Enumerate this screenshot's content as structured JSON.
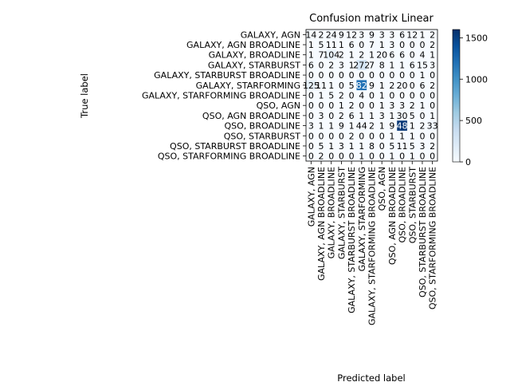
{
  "chart_data": {
    "type": "heatmap",
    "title": "Confusion matrix Linear",
    "xlabel": "Predicted label",
    "ylabel": "True label",
    "labels": [
      "GALAXY, AGN",
      "GALAXY, AGN BROADLINE",
      "GALAXY, BROADLINE",
      "GALAXY, STARBURST",
      "GALAXY, STARBURST BROADLINE",
      "GALAXY, STARFORMING",
      "GALAXY, STARFORMING BROADLINE",
      "QSO, AGN",
      "QSO, AGN BROADLINE",
      "QSO, BROADLINE",
      "QSO, STARBURST",
      "QSO, STARBURST BROADLINE",
      "QSO, STARFORMING BROADLINE"
    ],
    "matrix": [
      [
        14,
        2,
        24,
        9,
        12,
        3,
        9,
        3,
        3,
        6,
        12,
        1,
        2
      ],
      [
        1,
        5,
        11,
        1,
        6,
        0,
        7,
        1,
        3,
        0,
        0,
        0,
        2
      ],
      [
        1,
        7,
        104,
        2,
        1,
        2,
        1,
        20,
        6,
        6,
        0,
        4,
        1
      ],
      [
        6,
        0,
        2,
        3,
        1,
        272,
        7,
        8,
        1,
        1,
        6,
        15,
        3
      ],
      [
        0,
        0,
        0,
        0,
        0,
        0,
        0,
        0,
        0,
        0,
        0,
        1,
        0
      ],
      [
        125,
        11,
        1,
        0,
        5,
        82,
        9,
        1,
        2,
        20,
        0,
        6,
        2
      ],
      [
        0,
        1,
        5,
        2,
        0,
        4,
        0,
        1,
        0,
        0,
        0,
        0,
        0
      ],
      [
        0,
        0,
        0,
        1,
        2,
        0,
        0,
        1,
        3,
        3,
        2,
        1,
        0
      ],
      [
        0,
        3,
        0,
        2,
        6,
        1,
        1,
        3,
        1,
        30,
        5,
        0,
        1
      ],
      [
        3,
        1,
        1,
        9,
        1,
        44,
        2,
        1,
        9,
        48,
        1,
        2,
        33
      ],
      [
        0,
        0,
        0,
        0,
        2,
        0,
        0,
        0,
        1,
        1,
        1,
        0,
        0
      ],
      [
        0,
        5,
        1,
        3,
        1,
        1,
        8,
        0,
        5,
        11,
        5,
        3,
        2
      ],
      [
        0,
        2,
        0,
        0,
        0,
        1,
        0,
        0,
        1,
        0,
        1,
        0,
        0
      ]
    ],
    "cell_labels": [
      [
        "14",
        "2",
        "24",
        "9",
        "12",
        "3",
        "9",
        "3",
        "3",
        "6",
        "12",
        "1",
        "2"
      ],
      [
        "1",
        "5",
        "11",
        "1",
        "6",
        "0",
        "7",
        "1",
        "3",
        "0",
        "0",
        "0",
        "2"
      ],
      [
        "1",
        "7",
        "104",
        "2",
        "1",
        "2",
        "1",
        "20",
        "6",
        "6",
        "0",
        "4",
        "1"
      ],
      [
        "6",
        "0",
        "2",
        "3",
        "1",
        "272",
        "7",
        "8",
        "1",
        "1",
        "6",
        "15",
        "3"
      ],
      [
        "0",
        "0",
        "0",
        "0",
        "0",
        "0",
        "0",
        "0",
        "0",
        "0",
        "0",
        "1",
        "0"
      ],
      [
        "125",
        "11",
        "1",
        "0",
        "5",
        "82",
        "9",
        "1",
        "2",
        "20",
        "0",
        "6",
        "2"
      ],
      [
        "0",
        "1",
        "5",
        "2",
        "0",
        "4",
        "0",
        "1",
        "0",
        "0",
        "0",
        "0",
        "0"
      ],
      [
        "0",
        "0",
        "0",
        "1",
        "2",
        "0",
        "0",
        "1",
        "3",
        "3",
        "2",
        "1",
        "0"
      ],
      [
        "0",
        "3",
        "0",
        "2",
        "6",
        "1",
        "1",
        "3",
        "1",
        "30",
        "5",
        "0",
        "1"
      ],
      [
        "3",
        "1",
        "1",
        "9",
        "1",
        "44",
        "2",
        "1",
        "9",
        "48",
        "1",
        "2",
        "33"
      ],
      [
        "0",
        "0",
        "0",
        "0",
        "2",
        "0",
        "0",
        "0",
        "1",
        "1",
        "1",
        "0",
        "0"
      ],
      [
        "0",
        "5",
        "1",
        "3",
        "1",
        "1",
        "8",
        "0",
        "5",
        "11",
        "5",
        "3",
        "2"
      ],
      [
        "0",
        "2",
        "0",
        "0",
        "0",
        "1",
        "0",
        "0",
        "1",
        "0",
        "1",
        "0",
        "0"
      ]
    ],
    "diagonal_overrides": {
      "5": 1200,
      "9": 1550
    },
    "colorbar": {
      "colormap": "Blues",
      "min": 0,
      "max": 1600,
      "ticks": [
        0,
        500,
        1000,
        1500
      ]
    },
    "colors": {
      "low": "#f7fbff",
      "high": "#08306b",
      "text_dark": "#000000",
      "text_light": "#ffffff"
    }
  }
}
